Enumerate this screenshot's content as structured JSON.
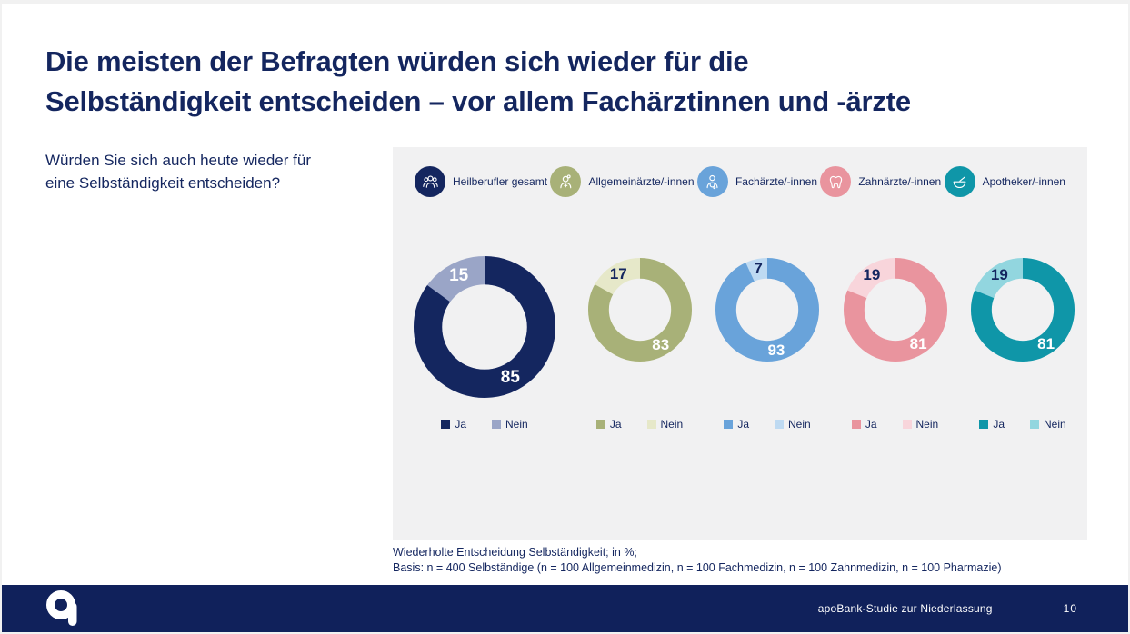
{
  "page": {
    "title": "Die meisten der Befragten würden sich wieder für die\nSelbständigkeit entscheiden – vor allem Fachärztinnen und -ärzte",
    "question": "Würden Sie sich auch heute wieder für\neine Selbständigkeit entscheiden?",
    "footnote_line1": "Wiederholte Entscheidung Selbständigkeit; in %;",
    "footnote_line2": "Basis: n = 400 Selbständige (n = 100 Allgemeinmedizin, n = 100 Fachmedizin, n = 100 Zahnmedizin, n = 100 Pharmazie)",
    "footer_label": "apoBank-Studie zur Niederlassung",
    "page_number": "10"
  },
  "colors": {
    "navy": "#14265F",
    "panel_bg": "#F1F1F2",
    "footer_bg": "#10215B",
    "white": "#FFFFFF"
  },
  "chart_data": {
    "type": "pie",
    "subtype": "donut-small-multiples",
    "unit": "%",
    "title": "Wiederholte Entscheidung Selbständigkeit; in %",
    "answer_labels": {
      "ja": "Ja",
      "nein": "Nein"
    },
    "donuts": [
      {
        "group": "Heilberufler gesamt",
        "icon": "people-group-icon",
        "ja": 85,
        "nein": 15,
        "ja_color": "#14265F",
        "nein_color": "#9AA5C7",
        "ja_label_color": "#FFFFFF",
        "nein_label_color": "#FFFFFF"
      },
      {
        "group": "Allgemeinärzte/-innen",
        "icon": "nurse-icon",
        "ja": 83,
        "nein": 17,
        "ja_color": "#A8B178",
        "nein_color": "#E6E8C9",
        "ja_label_color": "#FFFFFF",
        "nein_label_color": "#14265F"
      },
      {
        "group": "Fachärzte/-innen",
        "icon": "doctor-icon",
        "ja": 93,
        "nein": 7,
        "ja_color": "#69A3DA",
        "nein_color": "#BEDAF2",
        "ja_label_color": "#FFFFFF",
        "nein_label_color": "#14265F"
      },
      {
        "group": "Zahnärzte/-innen",
        "icon": "tooth-icon",
        "ja": 81,
        "nein": 19,
        "ja_color": "#E9949E",
        "nein_color": "#F8D5DB",
        "ja_label_color": "#FFFFFF",
        "nein_label_color": "#14265F"
      },
      {
        "group": "Apotheker/-innen",
        "icon": "mortar-pestle-icon",
        "ja": 81,
        "nein": 19,
        "ja_color": "#0F96A8",
        "nein_color": "#92D6DF",
        "ja_label_color": "#FFFFFF",
        "nein_label_color": "#14265F"
      }
    ]
  }
}
